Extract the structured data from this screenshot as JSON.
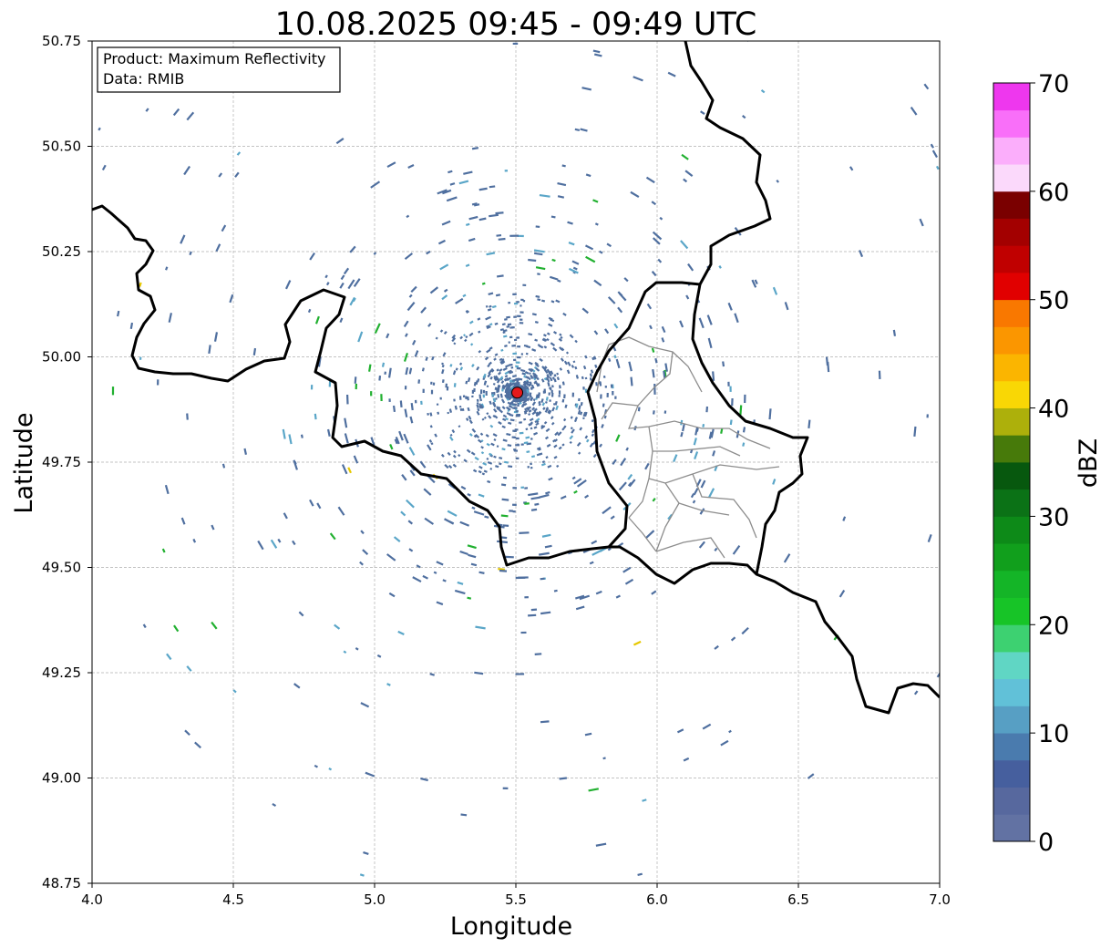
{
  "title": "10.08.2025 09:45 - 09:49 UTC",
  "xlabel": "Longitude",
  "ylabel": "Latitude",
  "x_ticks": [
    "4.0",
    "4.5",
    "5.0",
    "5.5",
    "6.0",
    "6.5",
    "7.0"
  ],
  "y_ticks": [
    "50.75",
    "50.50",
    "50.25",
    "50.00",
    "49.75",
    "49.50",
    "49.25",
    "49.00",
    "48.75"
  ],
  "info_box": {
    "product": "Product: Maximum Reflectivity",
    "source": "Data: RMIB"
  },
  "colorbar": {
    "label": "dBZ",
    "ticks": [
      "0",
      "10",
      "20",
      "30",
      "40",
      "50",
      "60",
      "70"
    ],
    "colors": [
      "#6272a3",
      "#57689e",
      "#465f9e",
      "#4a7bae",
      "#579fc4",
      "#61c1d8",
      "#60d6c4",
      "#3dd171",
      "#17c427",
      "#14b527",
      "#119f1c",
      "#0d8a18",
      "#0b7216",
      "#07580e",
      "#477a0a",
      "#adb00b",
      "#f9d705",
      "#fbb500",
      "#fb9600",
      "#f97800",
      "#e10000",
      "#c00000",
      "#a30000",
      "#7a0000",
      "#fbd9fb",
      "#fbaefb",
      "#f96ff9",
      "#ee37ee"
    ],
    "range": [
      0,
      70
    ]
  },
  "map": {
    "lon_range": [
      4.0,
      7.0
    ],
    "lat_range": [
      48.75,
      50.75
    ],
    "radar_site": {
      "lon": 5.505,
      "lat": 49.915,
      "color": "#e41a1c"
    }
  },
  "colors": {
    "border": "#000000",
    "admin": "#8c8c8c",
    "grid": "#b0b0b0",
    "echo_weak": "#4f6f9f",
    "echo_light": "#5aa6c8",
    "echo_green": "#21b030",
    "echo_yellow": "#e6c800",
    "echo_red": "#e0241e"
  }
}
